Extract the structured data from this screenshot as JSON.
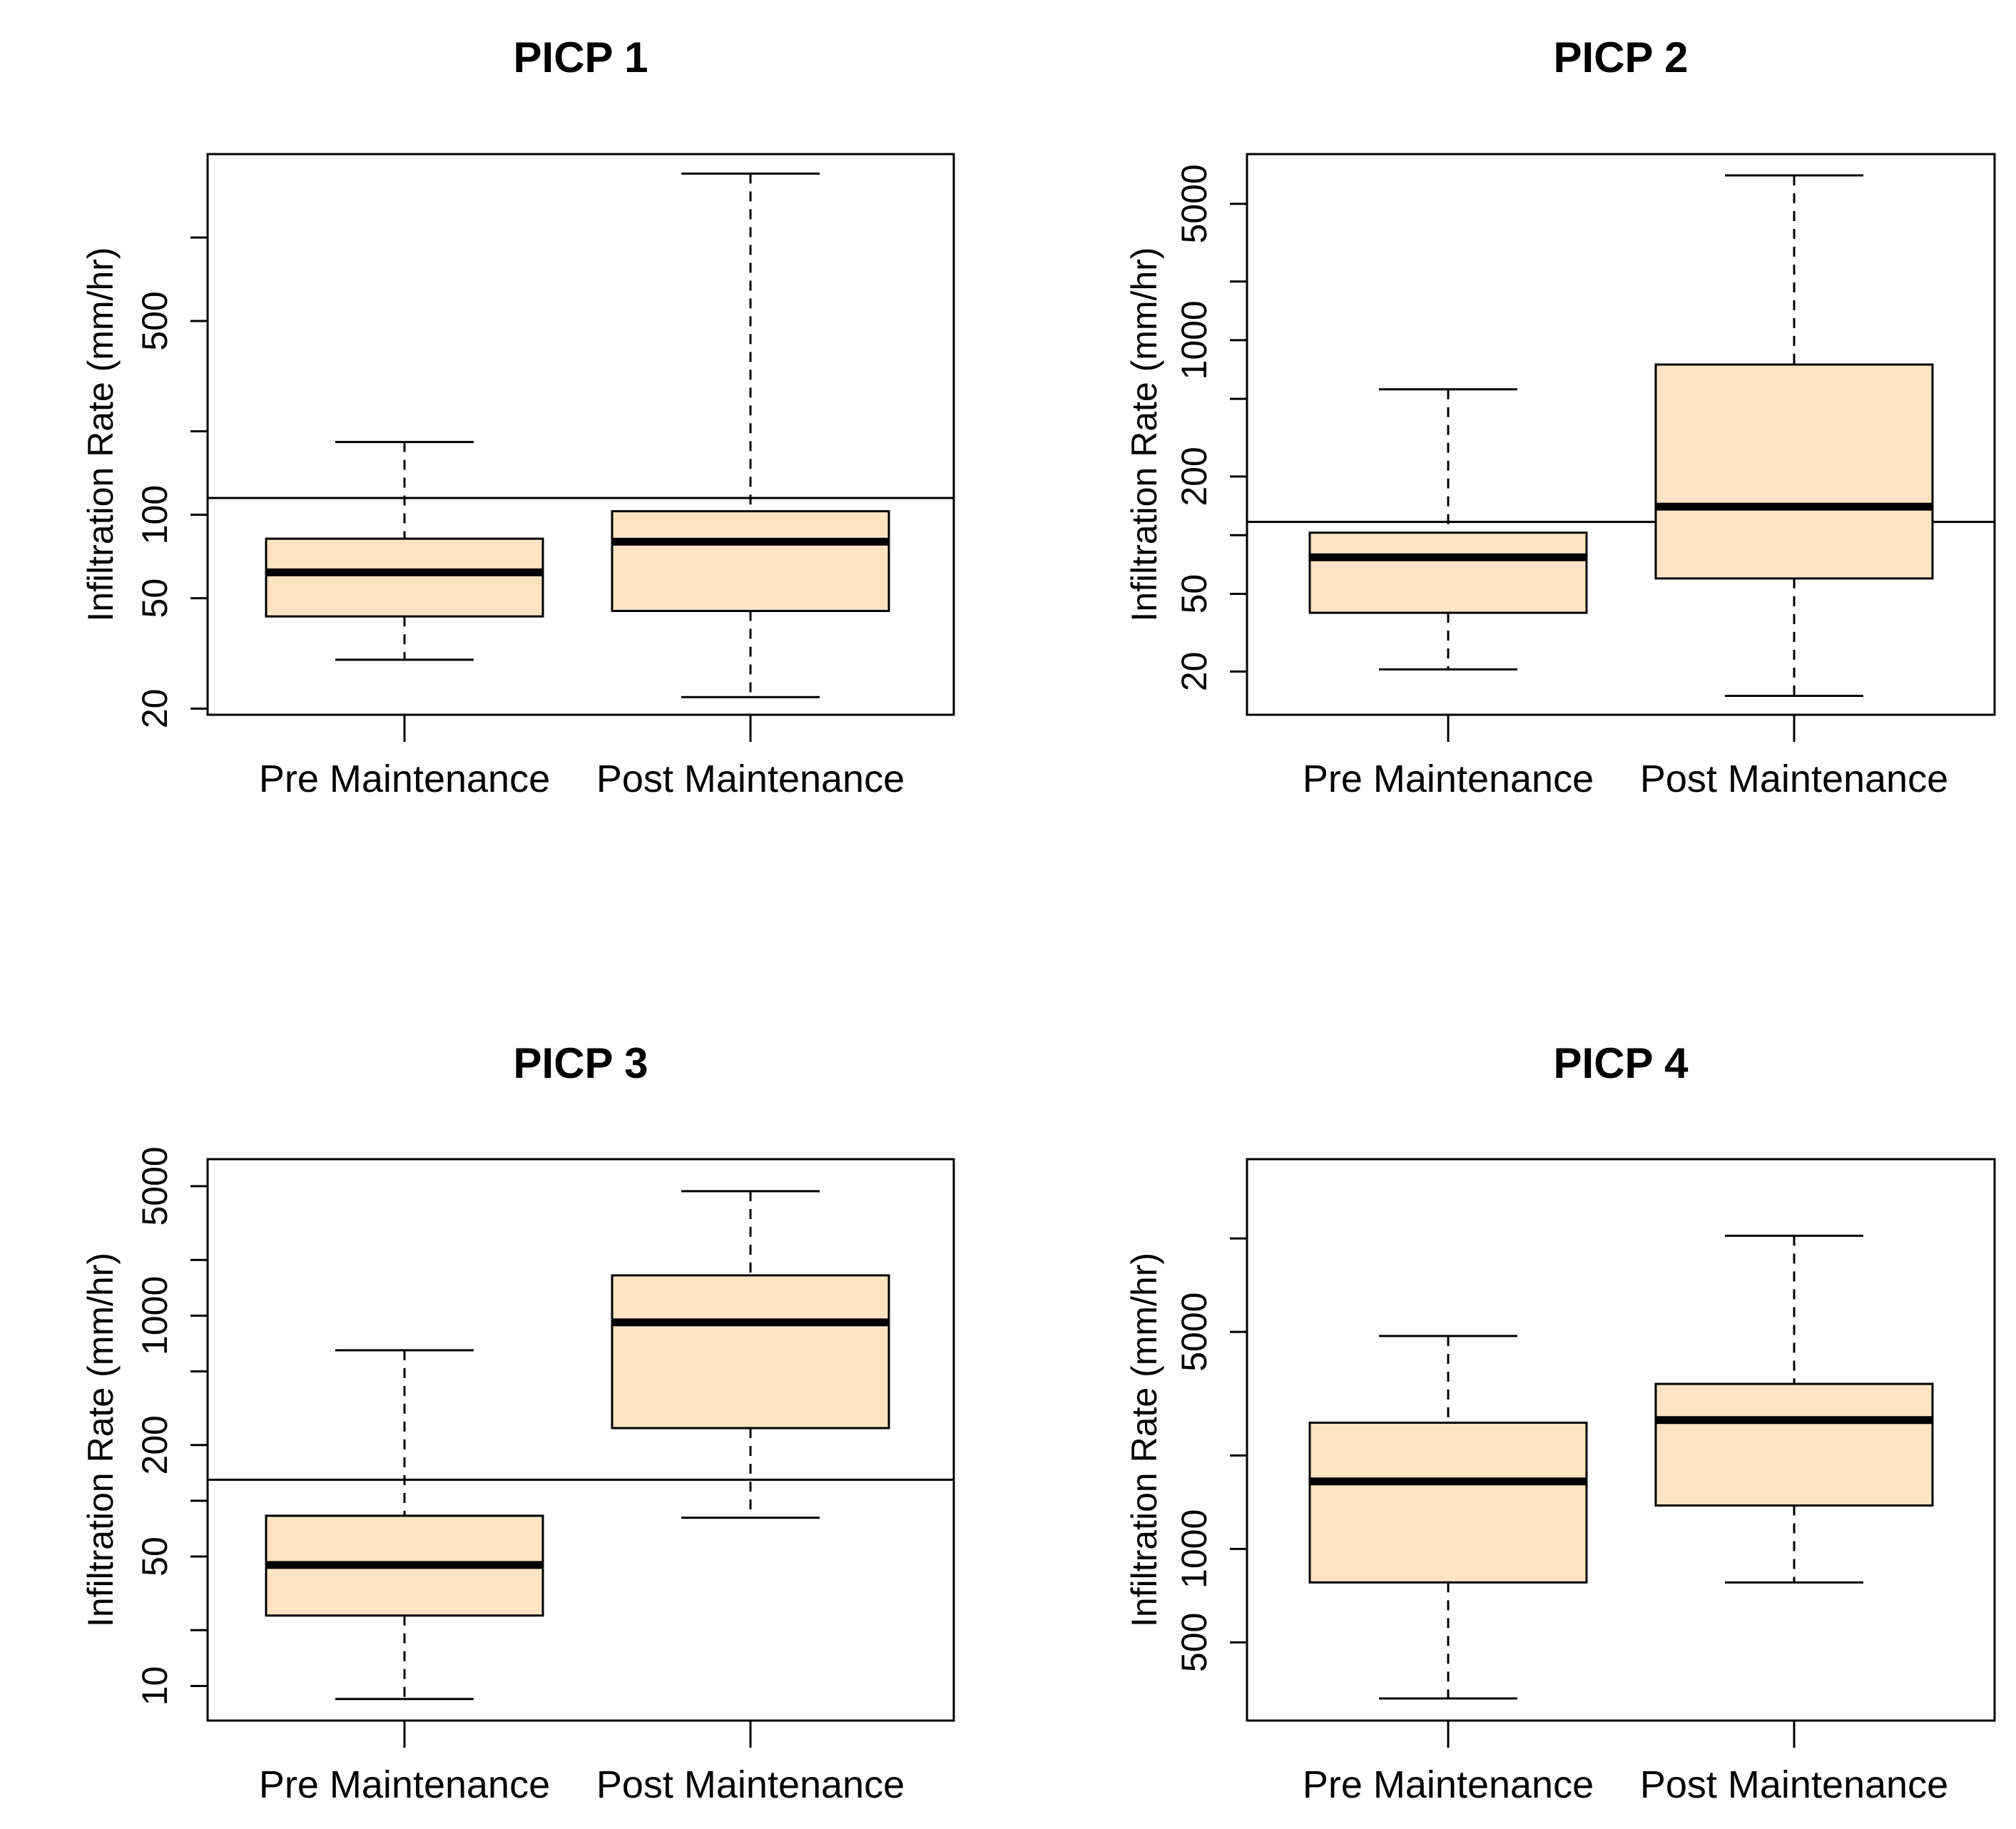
{
  "colors": {
    "box_fill": "#FFE4C4",
    "stroke": "#000000",
    "background": "#FFFFFF"
  },
  "chart_data": [
    {
      "type": "boxplot",
      "title": "PICP 1",
      "ylabel": "Infiltration Rate (mm/hr)",
      "yscale": "log",
      "ylim": [
        19,
        2000
      ],
      "yticks": [
        20,
        50,
        100,
        200,
        500,
        1000
      ],
      "ytick_labels": [
        "20",
        "50",
        "100",
        "",
        "500",
        ""
      ],
      "categories": [
        "Pre Maintenance",
        "Post Maintenance"
      ],
      "boxes": [
        {
          "whisker_low": 30,
          "q1": 43,
          "median": 62,
          "q3": 82,
          "whisker_high": 183
        },
        {
          "whisker_low": 22,
          "q1": 45,
          "median": 80,
          "q3": 103,
          "whisker_high": 1700
        }
      ],
      "reference_line": 115
    },
    {
      "type": "boxplot",
      "title": "PICP 2",
      "ylabel": "Infiltration Rate (mm/hr)",
      "yscale": "log",
      "ylim": [
        12,
        9000
      ],
      "yticks": [
        20,
        50,
        100,
        200,
        500,
        1000,
        2000,
        5000
      ],
      "ytick_labels": [
        "20",
        "50",
        "",
        "200",
        "",
        "1000",
        "",
        "5000"
      ],
      "categories": [
        "Pre Maintenance",
        "Post Maintenance"
      ],
      "boxes": [
        {
          "whisker_low": 20.5,
          "q1": 40,
          "median": 77,
          "q3": 103,
          "whisker_high": 560
        },
        {
          "whisker_low": 15,
          "q1": 60,
          "median": 140,
          "q3": 750,
          "whisker_high": 7000
        }
      ],
      "reference_line": 117
    },
    {
      "type": "boxplot",
      "title": "PICP 3",
      "ylabel": "Infiltration Rate (mm/hr)",
      "yscale": "log",
      "ylim": [
        6.5,
        7000
      ],
      "yticks": [
        10,
        20,
        50,
        100,
        200,
        500,
        1000,
        2000,
        5000
      ],
      "ytick_labels": [
        "10",
        "",
        "50",
        "",
        "200",
        "",
        "1000",
        "",
        "5000"
      ],
      "categories": [
        "Pre Maintenance",
        "Post Maintenance"
      ],
      "boxes": [
        {
          "whisker_low": 8.5,
          "q1": 24,
          "median": 45,
          "q3": 83,
          "whisker_high": 650
        },
        {
          "whisker_low": 81,
          "q1": 247,
          "median": 920,
          "q3": 1650,
          "whisker_high": 4700
        }
      ],
      "reference_line": 130
    },
    {
      "type": "boxplot",
      "title": "PICP 4",
      "ylabel": "Infiltration Rate (mm/hr)",
      "yscale": "log",
      "ylim": [
        280,
        18000
      ],
      "yticks": [
        500,
        1000,
        2000,
        5000,
        10000
      ],
      "ytick_labels": [
        "500",
        "1000",
        "",
        "5000",
        ""
      ],
      "categories": [
        "Pre Maintenance",
        "Post Maintenance"
      ],
      "boxes": [
        {
          "whisker_low": 330,
          "q1": 780,
          "median": 1650,
          "q3": 2550,
          "whisker_high": 4850
        },
        {
          "whisker_low": 780,
          "q1": 1380,
          "median": 2600,
          "q3": 3400,
          "whisker_high": 10200
        }
      ],
      "reference_line": null
    }
  ]
}
